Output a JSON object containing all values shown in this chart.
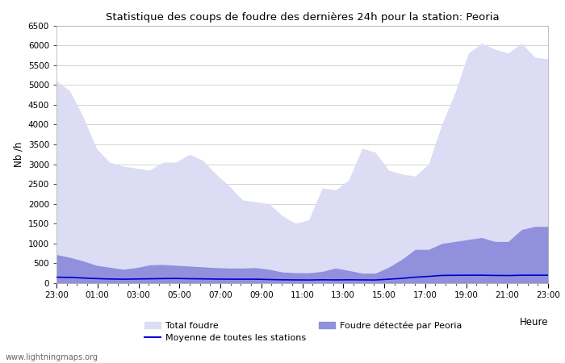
{
  "title": "Statistique des coups de foudre des dernières 24h pour la station: Peoria",
  "ylabel": "Nb /h",
  "xlabel": "Heure",
  "watermark": "www.lightningmaps.org",
  "x_labels": [
    "23:00",
    "01:00",
    "03:00",
    "05:00",
    "07:00",
    "09:00",
    "11:00",
    "13:00",
    "15:00",
    "17:00",
    "19:00",
    "21:00",
    "23:00"
  ],
  "ylim": [
    0,
    6500
  ],
  "yticks": [
    0,
    500,
    1000,
    1500,
    2000,
    2500,
    3000,
    3500,
    4000,
    4500,
    5000,
    5500,
    6000,
    6500
  ],
  "color_total": "#dcdcf5",
  "color_peoria": "#9090dd",
  "color_moyenne": "#0000cc",
  "bg_color": "#ffffff",
  "legend_total": "Total foudre",
  "legend_peoria": "Foudre détectée par Peoria",
  "legend_moyenne": "Moyenne de toutes les stations",
  "total_foudre": [
    5100,
    4850,
    4200,
    3400,
    3050,
    2950,
    2900,
    2850,
    3050,
    3050,
    3250,
    3100,
    2750,
    2450,
    2100,
    2050,
    2000,
    1700,
    1500,
    1600,
    2400,
    2350,
    2600,
    3400,
    3300,
    2850,
    2750,
    2700,
    3000,
    4000,
    4800,
    5800,
    6050,
    5900,
    5800,
    6050,
    5700,
    5650
  ],
  "peoria": [
    720,
    650,
    560,
    450,
    400,
    350,
    390,
    460,
    470,
    450,
    430,
    410,
    390,
    380,
    380,
    390,
    350,
    280,
    260,
    260,
    295,
    380,
    320,
    250,
    250,
    400,
    600,
    850,
    850,
    1000,
    1050,
    1100,
    1150,
    1050,
    1050,
    1350,
    1430,
    1430
  ],
  "moyenne": [
    150,
    145,
    130,
    115,
    105,
    100,
    105,
    110,
    115,
    118,
    112,
    108,
    103,
    100,
    100,
    100,
    92,
    85,
    82,
    80,
    85,
    82,
    85,
    82,
    80,
    100,
    120,
    150,
    170,
    195,
    198,
    200,
    200,
    195,
    192,
    200,
    200,
    200
  ]
}
